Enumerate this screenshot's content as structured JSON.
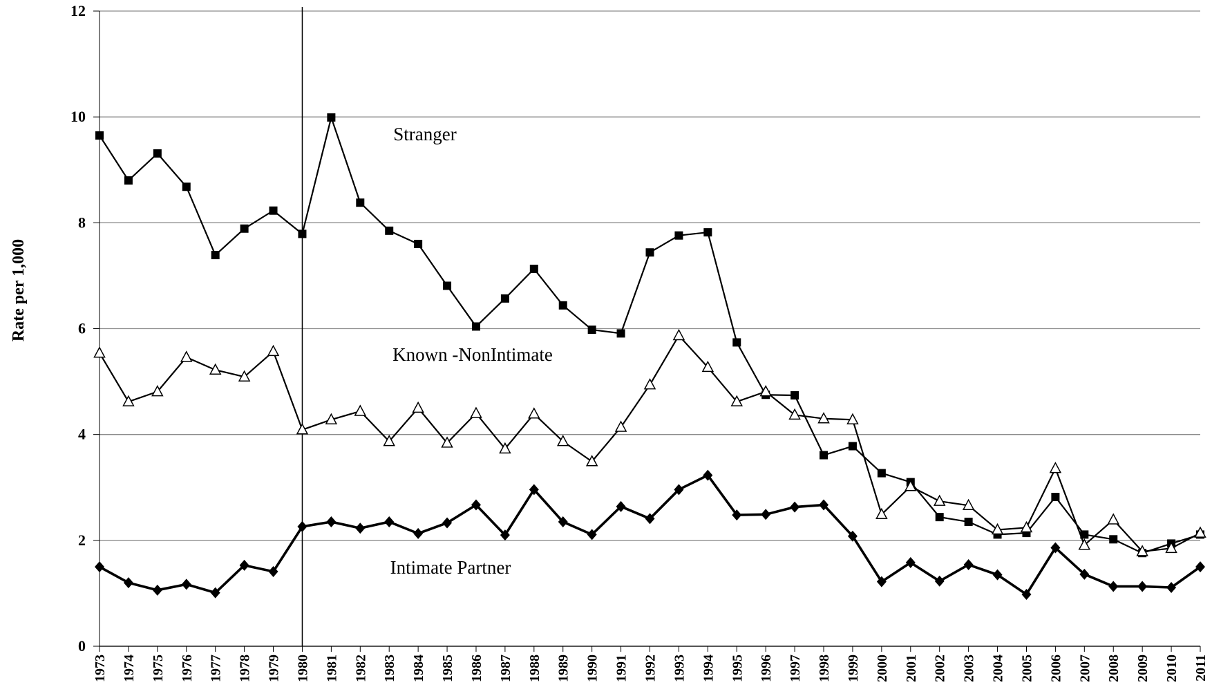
{
  "chart_data": {
    "type": "line",
    "y_label": "Rate per 1,000",
    "x": [
      1973,
      1974,
      1975,
      1976,
      1977,
      1978,
      1979,
      1980,
      1981,
      1982,
      1983,
      1984,
      1985,
      1986,
      1987,
      1988,
      1989,
      1990,
      1991,
      1992,
      1993,
      1994,
      1995,
      1996,
      1997,
      1998,
      1999,
      2000,
      2001,
      2002,
      2003,
      2004,
      2005,
      2006,
      2007,
      2008,
      2009,
      2010,
      2011
    ],
    "xlim": [
      1973,
      2011
    ],
    "ylim": [
      0,
      12
    ],
    "yticks": [
      0,
      2,
      4,
      6,
      8,
      10,
      12
    ],
    "grid": true,
    "reference_line_x": 1980,
    "series": [
      {
        "name": "Stranger",
        "color": "#000000",
        "marker": "square",
        "values": [
          9.65,
          8.8,
          9.31,
          8.68,
          7.39,
          7.89,
          8.23,
          7.79,
          9.99,
          8.38,
          7.85,
          7.6,
          6.81,
          6.04,
          6.57,
          7.13,
          6.44,
          5.98,
          5.91,
          7.44,
          7.76,
          7.82,
          5.74,
          4.75,
          4.74,
          3.61,
          3.78,
          3.27,
          3.1,
          2.44,
          2.35,
          2.11,
          2.14,
          2.82,
          2.11,
          2.02,
          1.76,
          1.94,
          2.11
        ]
      },
      {
        "name": "Known -NonIntimate",
        "color": "#000000",
        "marker": "triangle",
        "values": [
          5.54,
          4.62,
          4.81,
          5.46,
          5.22,
          5.09,
          5.57,
          4.09,
          4.28,
          4.44,
          3.87,
          4.5,
          3.84,
          4.4,
          3.73,
          4.39,
          3.87,
          3.49,
          4.14,
          4.94,
          5.87,
          5.27,
          4.62,
          4.81,
          4.37,
          4.3,
          4.28,
          2.49,
          3.02,
          2.74,
          2.66,
          2.2,
          2.24,
          3.36,
          1.91,
          2.39,
          1.79,
          1.85,
          2.14
        ]
      },
      {
        "name": "Intimate Partner",
        "color": "#000000",
        "marker": "diamond",
        "values": [
          1.5,
          1.2,
          1.06,
          1.17,
          1.01,
          1.53,
          1.41,
          2.26,
          2.35,
          2.23,
          2.35,
          2.13,
          2.33,
          2.67,
          2.1,
          2.96,
          2.35,
          2.11,
          2.64,
          2.41,
          2.96,
          3.23,
          2.48,
          2.49,
          2.63,
          2.67,
          2.08,
          1.22,
          1.58,
          1.23,
          1.54,
          1.35,
          0.98,
          1.86,
          1.36,
          1.13,
          1.13,
          1.11,
          1.5
        ]
      }
    ]
  }
}
